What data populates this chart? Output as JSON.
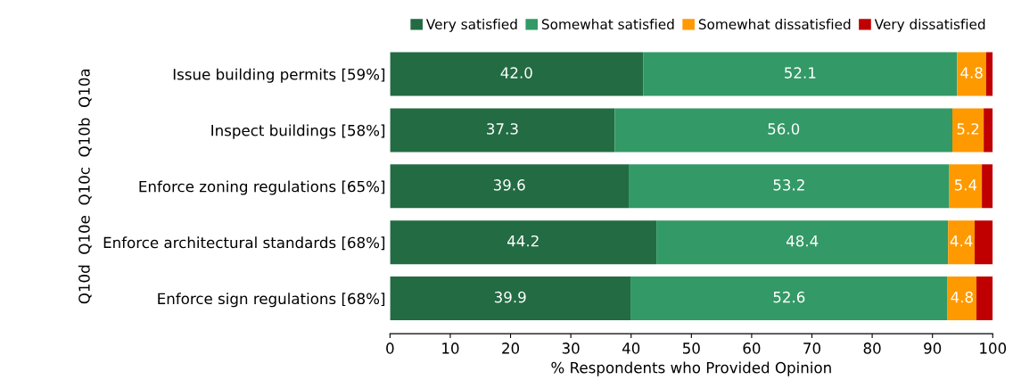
{
  "chart_data": {
    "type": "bar",
    "orientation": "horizontal",
    "stacked": true,
    "categories": [
      "Issue building permits [59%]",
      "Inspect buildings [58%]",
      "Enforce zoning regulations [65%]",
      "Enforce architectural standards [68%]",
      "Enforce sign regulations [68%]"
    ],
    "series": [
      {
        "name": "Very satisfied",
        "color": "#236b43",
        "values": [
          42.0,
          37.3,
          39.6,
          44.2,
          39.9
        ],
        "value_labels": [
          "42.0",
          "37.3",
          "39.6",
          "44.2",
          "39.9"
        ]
      },
      {
        "name": "Somewhat satisfied",
        "color": "#339966",
        "values": [
          52.1,
          56.0,
          53.2,
          48.4,
          52.6
        ],
        "value_labels": [
          "52.1",
          "56.0",
          "53.2",
          "48.4",
          "52.6"
        ]
      },
      {
        "name": "Somewhat dissatisfied",
        "color": "#ff9900",
        "values": [
          4.8,
          5.2,
          5.4,
          4.4,
          4.8
        ],
        "value_labels": [
          "4.8",
          "5.2",
          "5.4",
          "4.4",
          "4.8"
        ]
      },
      {
        "name": "Very dissatisfied",
        "color": "#c00000",
        "values": [
          1.1,
          1.5,
          1.8,
          3.0,
          2.7
        ]
      }
    ],
    "xlabel": "% Respondents who Provided Opinion",
    "ylabel": "Q10d  Q10e  Q10c  Q10b  Q10a",
    "xlim": [
      0,
      100
    ],
    "xticks": [
      0,
      10,
      20,
      30,
      40,
      50,
      60,
      70,
      80,
      90,
      100
    ],
    "grid": false,
    "legend": "top right"
  }
}
